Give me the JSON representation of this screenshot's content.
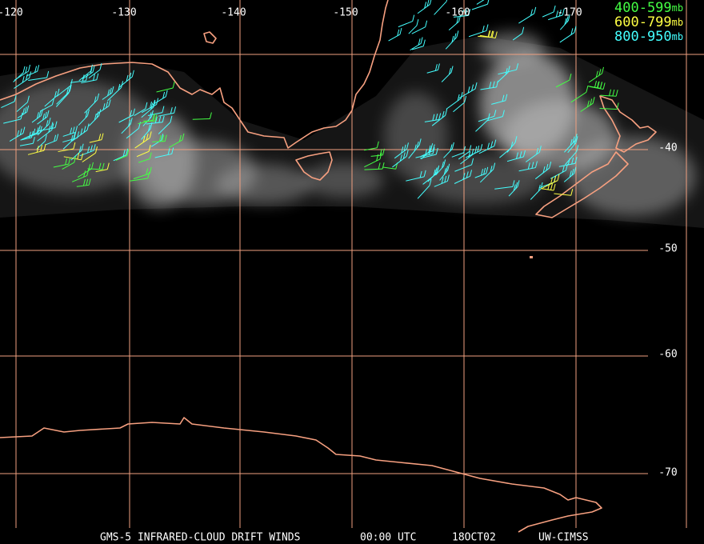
{
  "longitude_labels": [
    "-120",
    "-130",
    "-140",
    "-150",
    "-160",
    "-170"
  ],
  "latitude_labels": [
    "-40",
    "-50",
    "-60",
    "-70"
  ],
  "legend": [
    {
      "label": "400-599",
      "unit": "mb",
      "color": "#44ff44"
    },
    {
      "label": "600-799",
      "unit": "mb",
      "color": "#ffff44"
    },
    {
      "label": "800-950",
      "unit": "mb",
      "color": "#44ffff"
    }
  ],
  "footer": {
    "product": "GMS-5 INFRARED-CLOUD DRIFT WINDS",
    "time": "00:00 UTC",
    "date": "18OCT02",
    "source": "UW-CIMSS"
  }
}
